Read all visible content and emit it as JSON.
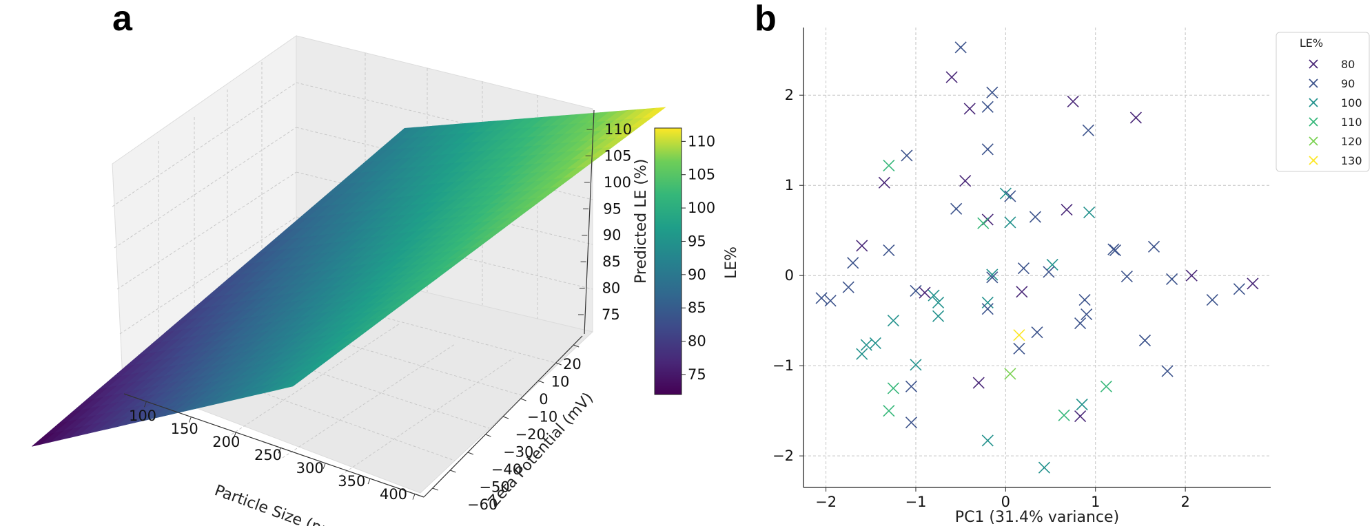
{
  "panels": {
    "a": {
      "label": "a"
    },
    "b": {
      "label": "b"
    }
  },
  "chart_data": [
    {
      "panel": "a",
      "type": "surface3d",
      "x": {
        "label": "Particle Size (nm)",
        "ticks": [
          100,
          150,
          200,
          250,
          300,
          350,
          400
        ],
        "range": [
          75,
          410
        ]
      },
      "y": {
        "label": "Zeta Potential (mV)",
        "ticks": [
          -60,
          -50,
          -40,
          -30,
          -20,
          -10,
          0,
          10,
          20
        ],
        "tick_labels": [
          "−60",
          "−50",
          "−40",
          "−30",
          "−20",
          "−10",
          "0",
          "10",
          "20"
        ],
        "range": [
          -65,
          25
        ]
      },
      "z": {
        "label": "Predicted LE (%)",
        "ticks": [
          75,
          80,
          85,
          90,
          95,
          100,
          105,
          110
        ],
        "range": [
          72,
          113
        ]
      },
      "surface_corners": {
        "size75_zeta25": 112,
        "size75_zeta-65": 92,
        "size410_zeta25": 96,
        "size410_zeta-65": 72
      },
      "colormap": "viridis",
      "colorbar": {
        "label": "LE%",
        "ticks": [
          75,
          80,
          85,
          90,
          95,
          100,
          105,
          110
        ],
        "range": [
          72,
          112
        ]
      }
    },
    {
      "panel": "b",
      "type": "scatter",
      "marker": "x",
      "xlabel": "PC1 (31.4% variance)",
      "ylabel": "",
      "xlim": [
        -2.25,
        2.95
      ],
      "ylim": [
        -2.35,
        2.75
      ],
      "xticks": [
        -2,
        -1,
        0,
        1,
        2
      ],
      "xtick_labels": [
        "−2",
        "−1",
        "0",
        "1",
        "2"
      ],
      "yticks": [
        -2,
        -1,
        0,
        1,
        2
      ],
      "ytick_labels": [
        "−2",
        "−1",
        "0",
        "1",
        "2"
      ],
      "grid": true,
      "legend": {
        "title": "LE%",
        "placement": "top-right, outside plot",
        "entries": [
          {
            "label": "80",
            "color": "#482677"
          },
          {
            "label": "90",
            "color": "#3b528b"
          },
          {
            "label": "100",
            "color": "#21918c"
          },
          {
            "label": "110",
            "color": "#35b779"
          },
          {
            "label": "120",
            "color": "#7ad151"
          },
          {
            "label": "130",
            "color": "#fde725"
          }
        ]
      },
      "points": [
        {
          "x": -0.5,
          "y": 2.53,
          "c": 90
        },
        {
          "x": -0.6,
          "y": 2.2,
          "c": 80
        },
        {
          "x": -0.15,
          "y": 2.03,
          "c": 90
        },
        {
          "x": -0.2,
          "y": 1.87,
          "c": 90
        },
        {
          "x": -0.4,
          "y": 1.85,
          "c": 80
        },
        {
          "x": 0.75,
          "y": 1.93,
          "c": 80
        },
        {
          "x": 1.45,
          "y": 1.75,
          "c": 80
        },
        {
          "x": 0.92,
          "y": 1.61,
          "c": 90
        },
        {
          "x": -1.1,
          "y": 1.33,
          "c": 90
        },
        {
          "x": -0.2,
          "y": 1.4,
          "c": 90
        },
        {
          "x": -1.3,
          "y": 1.22,
          "c": 110
        },
        {
          "x": -1.35,
          "y": 1.03,
          "c": 80
        },
        {
          "x": -0.45,
          "y": 1.05,
          "c": 80
        },
        {
          "x": 0.0,
          "y": 0.91,
          "c": 100
        },
        {
          "x": 0.05,
          "y": 0.88,
          "c": 90
        },
        {
          "x": -0.55,
          "y": 0.74,
          "c": 90
        },
        {
          "x": 0.68,
          "y": 0.73,
          "c": 80
        },
        {
          "x": 0.93,
          "y": 0.7,
          "c": 100
        },
        {
          "x": -0.2,
          "y": 0.62,
          "c": 80
        },
        {
          "x": -0.25,
          "y": 0.58,
          "c": 110
        },
        {
          "x": 0.05,
          "y": 0.59,
          "c": 100
        },
        {
          "x": 0.33,
          "y": 0.65,
          "c": 90
        },
        {
          "x": -1.6,
          "y": 0.33,
          "c": 80
        },
        {
          "x": -1.3,
          "y": 0.28,
          "c": 90
        },
        {
          "x": -1.7,
          "y": 0.14,
          "c": 90
        },
        {
          "x": 1.2,
          "y": 0.29,
          "c": 90
        },
        {
          "x": 1.22,
          "y": 0.28,
          "c": 90
        },
        {
          "x": 1.65,
          "y": 0.32,
          "c": 90
        },
        {
          "x": -0.15,
          "y": 0.01,
          "c": 100
        },
        {
          "x": -0.15,
          "y": -0.02,
          "c": 90
        },
        {
          "x": 0.2,
          "y": 0.08,
          "c": 90
        },
        {
          "x": 0.52,
          "y": 0.12,
          "c": 100
        },
        {
          "x": 0.48,
          "y": 0.04,
          "c": 90
        },
        {
          "x": 1.35,
          "y": -0.01,
          "c": 90
        },
        {
          "x": 1.85,
          "y": -0.04,
          "c": 90
        },
        {
          "x": 2.07,
          "y": 0.0,
          "c": 80
        },
        {
          "x": 2.75,
          "y": -0.09,
          "c": 80
        },
        {
          "x": 2.6,
          "y": -0.15,
          "c": 90
        },
        {
          "x": -1.75,
          "y": -0.13,
          "c": 90
        },
        {
          "x": -1.0,
          "y": -0.17,
          "c": 90
        },
        {
          "x": -0.9,
          "y": -0.19,
          "c": 80
        },
        {
          "x": -0.8,
          "y": -0.22,
          "c": 100
        },
        {
          "x": -2.05,
          "y": -0.25,
          "c": 90
        },
        {
          "x": -1.95,
          "y": -0.28,
          "c": 90
        },
        {
          "x": -0.75,
          "y": -0.3,
          "c": 100
        },
        {
          "x": -0.2,
          "y": -0.3,
          "c": 100
        },
        {
          "x": 0.18,
          "y": -0.18,
          "c": 80
        },
        {
          "x": 2.3,
          "y": -0.27,
          "c": 90
        },
        {
          "x": 0.88,
          "y": -0.27,
          "c": 90
        },
        {
          "x": -0.2,
          "y": -0.37,
          "c": 90
        },
        {
          "x": -0.75,
          "y": -0.45,
          "c": 100
        },
        {
          "x": -1.25,
          "y": -0.5,
          "c": 100
        },
        {
          "x": 0.9,
          "y": -0.43,
          "c": 90
        },
        {
          "x": 0.83,
          "y": -0.53,
          "c": 90
        },
        {
          "x": 0.35,
          "y": -0.63,
          "c": 90
        },
        {
          "x": 0.15,
          "y": -0.66,
          "c": 130
        },
        {
          "x": 1.55,
          "y": -0.72,
          "c": 90
        },
        {
          "x": -1.45,
          "y": -0.75,
          "c": 100
        },
        {
          "x": -1.55,
          "y": -0.77,
          "c": 100
        },
        {
          "x": -1.6,
          "y": -0.87,
          "c": 100
        },
        {
          "x": 0.15,
          "y": -0.81,
          "c": 90
        },
        {
          "x": -1.0,
          "y": -0.99,
          "c": 100
        },
        {
          "x": 1.8,
          "y": -1.06,
          "c": 90
        },
        {
          "x": 0.05,
          "y": -1.09,
          "c": 120
        },
        {
          "x": -1.05,
          "y": -1.23,
          "c": 90
        },
        {
          "x": -0.3,
          "y": -1.19,
          "c": 80
        },
        {
          "x": -1.25,
          "y": -1.25,
          "c": 110
        },
        {
          "x": 1.12,
          "y": -1.23,
          "c": 110
        },
        {
          "x": 0.85,
          "y": -1.43,
          "c": 100
        },
        {
          "x": -1.3,
          "y": -1.5,
          "c": 110
        },
        {
          "x": 0.65,
          "y": -1.55,
          "c": 110
        },
        {
          "x": 0.83,
          "y": -1.56,
          "c": 80
        },
        {
          "x": -1.05,
          "y": -1.63,
          "c": 90
        },
        {
          "x": -0.2,
          "y": -1.83,
          "c": 100
        },
        {
          "x": 0.43,
          "y": -2.13,
          "c": 100
        }
      ]
    }
  ]
}
